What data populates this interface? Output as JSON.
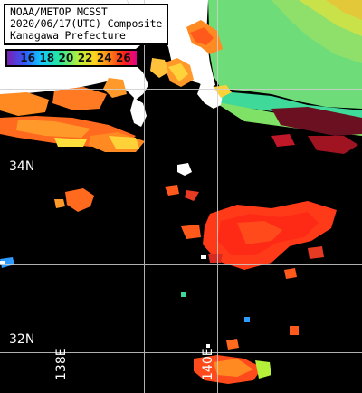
{
  "title": {
    "line1": "NOAA/METOP MCSST",
    "line2": "2020/06/17(UTC) Composite",
    "line3": "Kanagawa Prefecture"
  },
  "colorbar": {
    "ticks": [
      "16",
      "18",
      "20",
      "22",
      "24",
      "26"
    ],
    "colors": [
      "#7a1fb0",
      "#2f5cff",
      "#12c8ff",
      "#25e6a0",
      "#b6ef3a",
      "#ffd21e",
      "#ff7a16",
      "#ff2418",
      "#e0008c"
    ]
  },
  "grid": {
    "latitude_labels": [
      "34N",
      "32N"
    ],
    "longitude_labels": [
      "138E",
      "140E"
    ]
  },
  "colors": {
    "ocean_no_data": "#000000",
    "land": "#ffffff",
    "grid": "#cfcfcf"
  }
}
